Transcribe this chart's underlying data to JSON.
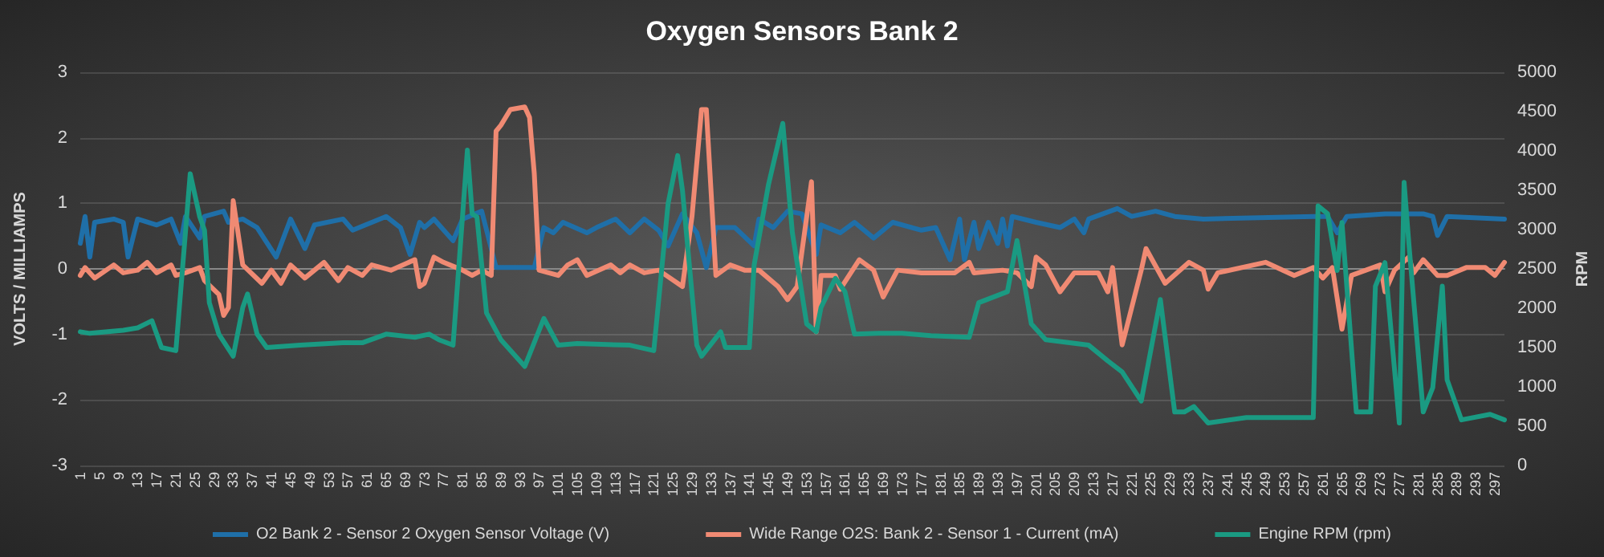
{
  "chart_data": {
    "type": "line",
    "title": "Oxygen Sensors Bank 2",
    "ylabel": "VOLTS / MILLIAMPS",
    "y2label": "RPM",
    "xlim": [
      1,
      299
    ],
    "xticks": [
      1,
      5,
      9,
      13,
      17,
      21,
      25,
      29,
      33,
      37,
      41,
      45,
      49,
      53,
      57,
      61,
      65,
      69,
      73,
      77,
      81,
      85,
      89,
      93,
      97,
      101,
      105,
      109,
      113,
      117,
      121,
      125,
      129,
      133,
      137,
      141,
      145,
      149,
      153,
      157,
      161,
      165,
      169,
      173,
      177,
      181,
      185,
      189,
      193,
      197,
      201,
      205,
      209,
      213,
      217,
      221,
      225,
      229,
      233,
      237,
      241,
      245,
      249,
      253,
      257,
      261,
      265,
      269,
      273,
      277,
      281,
      285,
      289,
      293,
      297
    ],
    "ylim": [
      -3,
      3
    ],
    "yticks": [
      -3,
      -2,
      -1,
      0,
      1,
      2,
      3
    ],
    "y2lim": [
      0,
      5000
    ],
    "y2ticks": [
      0,
      500,
      1000,
      1500,
      2000,
      2500,
      3000,
      3500,
      4000,
      4500,
      5000
    ],
    "grid": "y",
    "legend": "bottom",
    "marker": "none",
    "line_style": "solid",
    "series": [
      {
        "name": "O2 Bank 2 - Sensor 2 Oxygen Sensor Voltage (V)",
        "color": "#1f6fa8",
        "x": [
          1,
          2,
          3,
          4,
          8,
          10,
          11,
          13,
          17,
          20,
          22,
          23,
          26,
          27,
          31,
          32,
          35,
          38,
          42,
          45,
          48,
          50,
          56,
          58,
          65,
          68,
          70,
          72,
          73,
          75,
          79,
          81,
          85,
          88,
          94,
          96,
          98,
          100,
          102,
          107,
          109,
          113,
          116,
          119,
          122,
          124,
          127,
          130,
          132,
          134,
          138,
          142,
          143,
          146,
          149,
          152,
          155,
          156,
          160,
          163,
          167,
          171,
          177,
          180,
          183,
          185,
          186,
          188,
          189,
          191,
          193,
          194,
          195,
          196,
          201,
          206,
          209,
          211,
          212,
          218,
          221,
          226,
          230,
          236,
          259,
          262,
          264,
          266,
          274,
          282,
          284,
          285,
          287,
          299
        ],
        "values": [
          0.39,
          0.8,
          0.18,
          0.71,
          0.76,
          0.71,
          0.18,
          0.76,
          0.67,
          0.76,
          0.39,
          0.8,
          0.47,
          0.8,
          0.88,
          0.71,
          0.76,
          0.63,
          0.18,
          0.76,
          0.31,
          0.67,
          0.76,
          0.59,
          0.8,
          0.63,
          0.22,
          0.71,
          0.63,
          0.76,
          0.43,
          0.76,
          0.88,
          0.02,
          0.02,
          0.02,
          0.63,
          0.55,
          0.71,
          0.55,
          0.63,
          0.76,
          0.55,
          0.76,
          0.59,
          0.35,
          0.84,
          0.55,
          0.02,
          0.63,
          0.63,
          0.35,
          0.76,
          0.63,
          0.88,
          0.84,
          0.22,
          0.67,
          0.55,
          0.71,
          0.47,
          0.71,
          0.59,
          0.63,
          0.14,
          0.76,
          0.14,
          0.71,
          0.31,
          0.71,
          0.39,
          0.76,
          0.35,
          0.8,
          0.71,
          0.63,
          0.76,
          0.55,
          0.76,
          0.92,
          0.8,
          0.88,
          0.8,
          0.76,
          0.8,
          0.8,
          0.55,
          0.8,
          0.84,
          0.84,
          0.8,
          0.51,
          0.8,
          0.76
        ]
      },
      {
        "name": "Wide Range O2S: Bank 2 - Sensor 1 - Current (mA)",
        "color": "#f08a73",
        "x": [
          1,
          2,
          4,
          8,
          10,
          13,
          15,
          17,
          20,
          21,
          23,
          26,
          27,
          30,
          31,
          32,
          33,
          35,
          39,
          41,
          43,
          45,
          48,
          52,
          55,
          57,
          60,
          62,
          66,
          71,
          72,
          73,
          75,
          77,
          81,
          83,
          85,
          87,
          88,
          89,
          91,
          94,
          95,
          96,
          97,
          101,
          103,
          105,
          107,
          112,
          114,
          116,
          119,
          122,
          127,
          129,
          131,
          132,
          134,
          137,
          140,
          143,
          147,
          149,
          151,
          154,
          155,
          156,
          159,
          160,
          164,
          167,
          169,
          172,
          177,
          184,
          187,
          188,
          194,
          197,
          200,
          201,
          203,
          206,
          209,
          214,
          216,
          217,
          219,
          220,
          223,
          224,
          228,
          233,
          236,
          237,
          239,
          249,
          255,
          259,
          261,
          263,
          265,
          267,
          270,
          273,
          274,
          276,
          279,
          280,
          282,
          285,
          287,
          291,
          295,
          297,
          299
        ],
        "values": [
          -0.1,
          0.02,
          -0.14,
          0.06,
          -0.06,
          -0.02,
          0.1,
          -0.06,
          0.06,
          -0.1,
          -0.06,
          0.02,
          -0.18,
          -0.39,
          -0.71,
          -0.59,
          1.04,
          0.06,
          -0.22,
          -0.02,
          -0.22,
          0.06,
          -0.14,
          0.1,
          -0.18,
          0.02,
          -0.1,
          0.06,
          -0.02,
          0.14,
          -0.27,
          -0.22,
          0.18,
          0.1,
          -0.02,
          -0.1,
          -0.02,
          -0.1,
          2.1,
          2.19,
          2.43,
          2.47,
          2.31,
          1.45,
          -0.02,
          -0.1,
          0.06,
          0.14,
          -0.1,
          0.06,
          -0.06,
          0.06,
          -0.06,
          -0.02,
          -0.27,
          0.8,
          2.43,
          2.43,
          -0.1,
          0.06,
          -0.02,
          -0.02,
          -0.27,
          -0.47,
          -0.27,
          1.33,
          -0.96,
          -0.1,
          -0.1,
          -0.31,
          0.14,
          -0.02,
          -0.43,
          -0.02,
          -0.06,
          -0.06,
          0.1,
          -0.06,
          -0.02,
          -0.06,
          -0.27,
          0.18,
          0.06,
          -0.35,
          -0.06,
          -0.06,
          -0.35,
          0.02,
          -1.16,
          -0.88,
          -0.02,
          0.31,
          -0.22,
          0.1,
          -0.02,
          -0.31,
          -0.06,
          0.1,
          -0.1,
          0.02,
          -0.14,
          0.02,
          -0.92,
          -0.1,
          -0.02,
          0.06,
          -0.35,
          -0.02,
          0.18,
          -0.06,
          0.14,
          -0.1,
          -0.1,
          0.02,
          0.02,
          -0.1,
          0.1
        ]
      },
      {
        "name": "Engine RPM (rpm)",
        "color": "#1a9a82",
        "axis": "y2",
        "x": [
          1,
          3,
          10,
          13,
          16,
          18,
          21,
          24,
          26,
          27,
          28,
          30,
          33,
          35,
          36,
          38,
          40,
          47,
          56,
          60,
          65,
          71,
          74,
          76,
          79,
          82,
          83,
          84,
          86,
          89,
          94,
          98,
          101,
          105,
          116,
          121,
          124,
          126,
          127,
          130,
          131,
          135,
          136,
          141,
          142,
          145,
          148,
          150,
          153,
          155,
          156,
          159,
          161,
          163,
          168,
          173,
          179,
          187,
          189,
          195,
          197,
          200,
          203,
          212,
          216,
          219,
          223,
          227,
          230,
          232,
          234,
          237,
          245,
          251,
          259,
          260,
          262,
          264,
          265,
          268,
          271,
          272,
          274,
          277,
          278,
          279,
          282,
          284,
          286,
          287,
          290,
          296,
          299
        ],
        "values": [
          1700,
          1680,
          1720,
          1750,
          1840,
          1500,
          1460,
          3710,
          3160,
          2990,
          2070,
          1670,
          1390,
          2010,
          2180,
          1670,
          1500,
          1530,
          1560,
          1560,
          1670,
          1630,
          1670,
          1600,
          1530,
          4010,
          3200,
          3160,
          1940,
          1600,
          1260,
          1870,
          1530,
          1550,
          1530,
          1460,
          3330,
          3940,
          3500,
          1530,
          1390,
          1700,
          1500,
          1500,
          2550,
          3570,
          4350,
          2960,
          1800,
          1700,
          2010,
          2380,
          2210,
          1670,
          1680,
          1680,
          1650,
          1630,
          2070,
          2210,
          2860,
          1800,
          1600,
          1530,
          1330,
          1190,
          820,
          2110,
          680,
          680,
          750,
          540,
          610,
          610,
          610,
          3300,
          3200,
          2480,
          3090,
          680,
          680,
          2280,
          2580,
          540,
          3600,
          2820,
          680,
          990,
          2280,
          1090,
          580,
          650,
          580
        ]
      }
    ]
  }
}
